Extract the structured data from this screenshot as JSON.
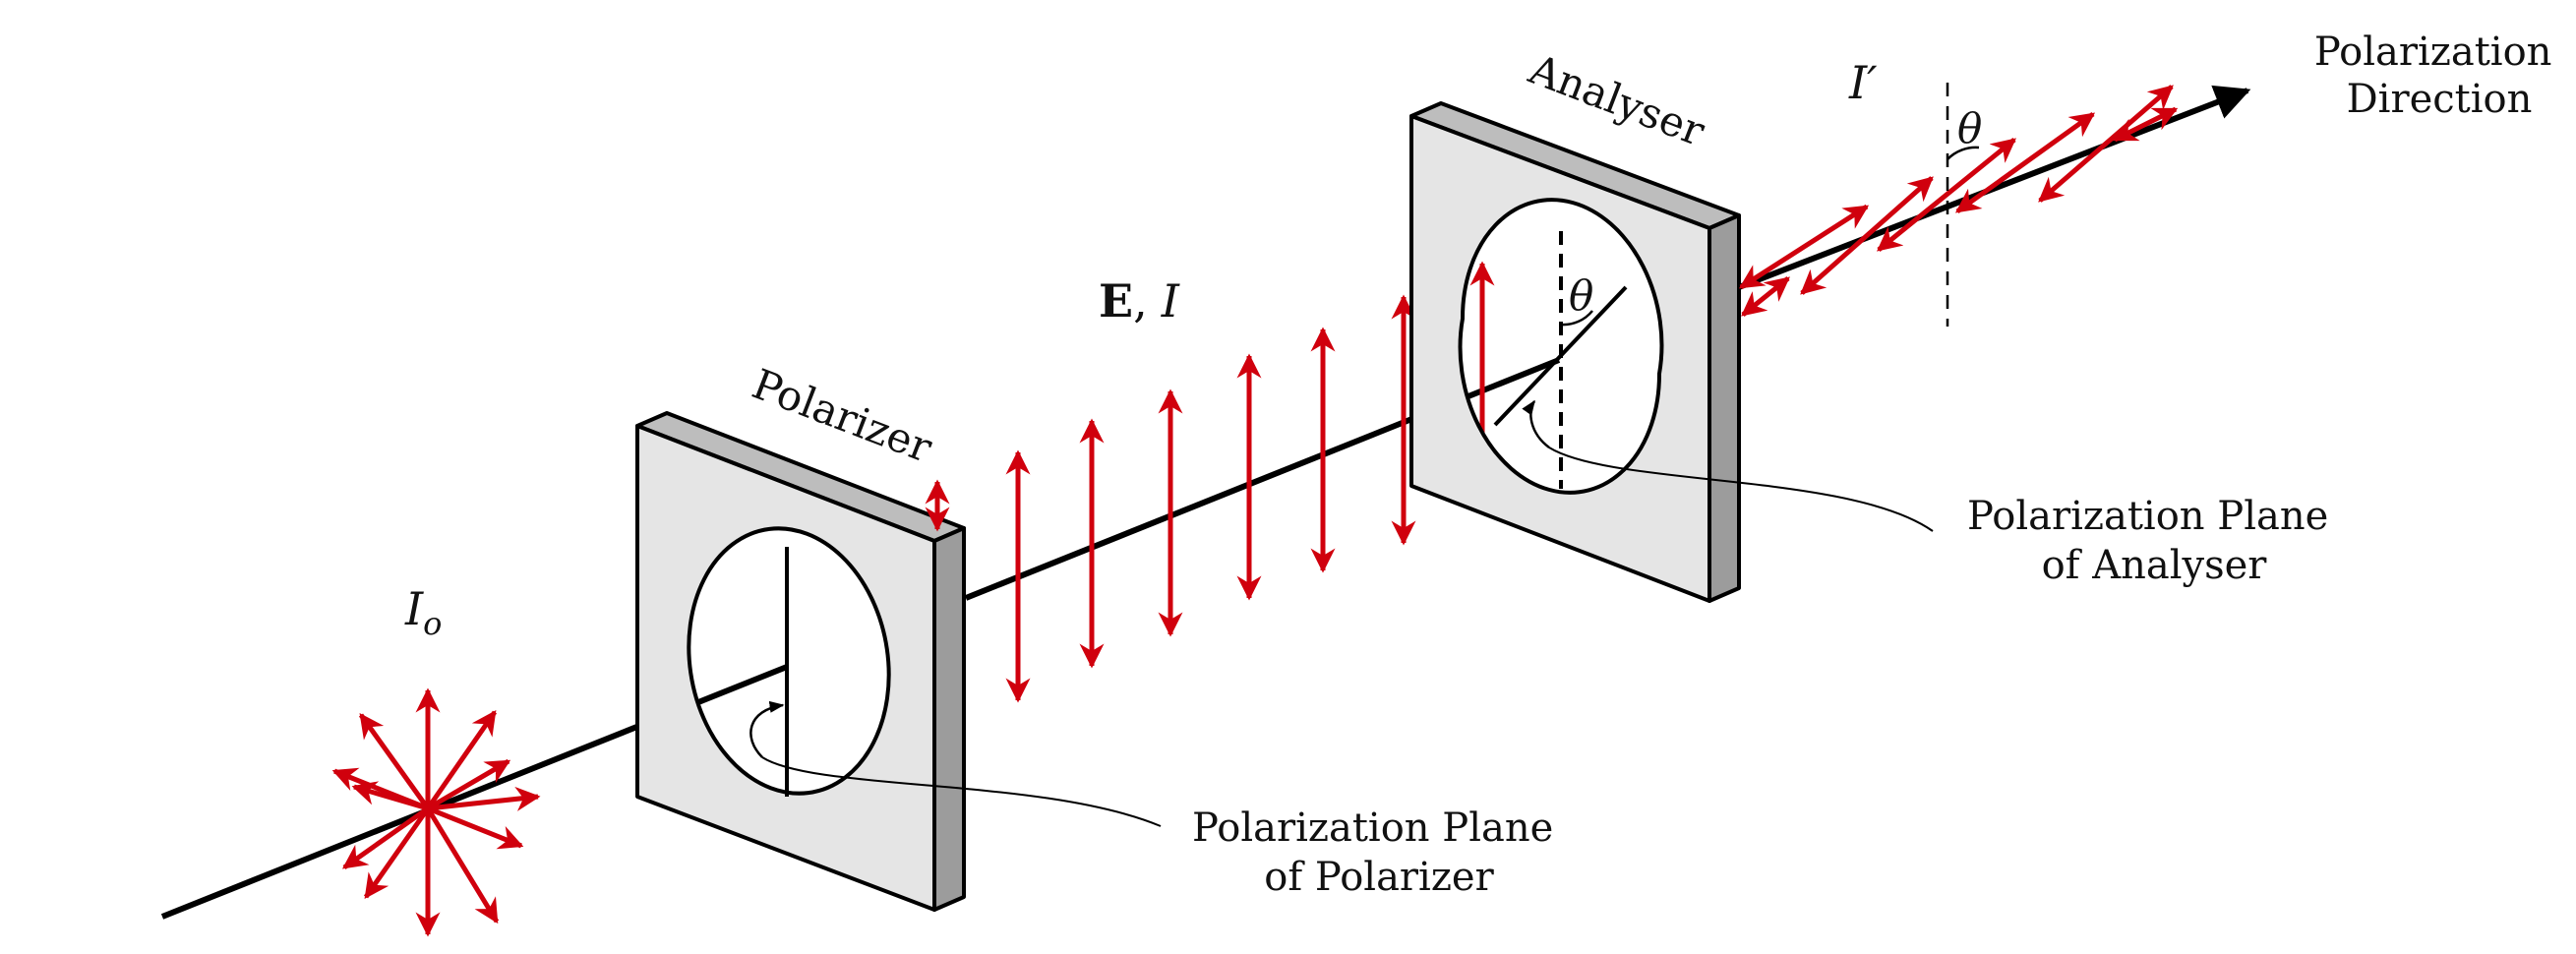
{
  "colors": {
    "arrow": "#d0000d",
    "beam": "#000000",
    "plate_face": "#e5e5e5",
    "plate_side": "#9c9c9c",
    "plate_top": "#bdbdbd"
  },
  "labels": {
    "source_intensity": "I",
    "source_intensity_sub": "o",
    "field_bold": "E",
    "field_sep": ",",
    "field_intensity": "I",
    "output_intensity": "I′",
    "polarizer": "Polarizer",
    "analyser": "Analyser",
    "theta_analyser": "θ",
    "theta_output": "θ",
    "polarization_direction_line1": "Polarization",
    "polarization_direction_line2": "Direction",
    "plane_analyser_line1": "Polarization Plane",
    "plane_analyser_line2": "of Analyser",
    "plane_polarizer_line1": "Polarization Plane",
    "plane_polarizer_line2": "of Polarizer"
  },
  "icons": {
    "unpolarized_star": "unpolarized-light-arrows-icon",
    "vertical_arrows": "vertical-polarization-arrows-icon",
    "tilted_arrows": "tilted-polarization-arrows-icon"
  }
}
